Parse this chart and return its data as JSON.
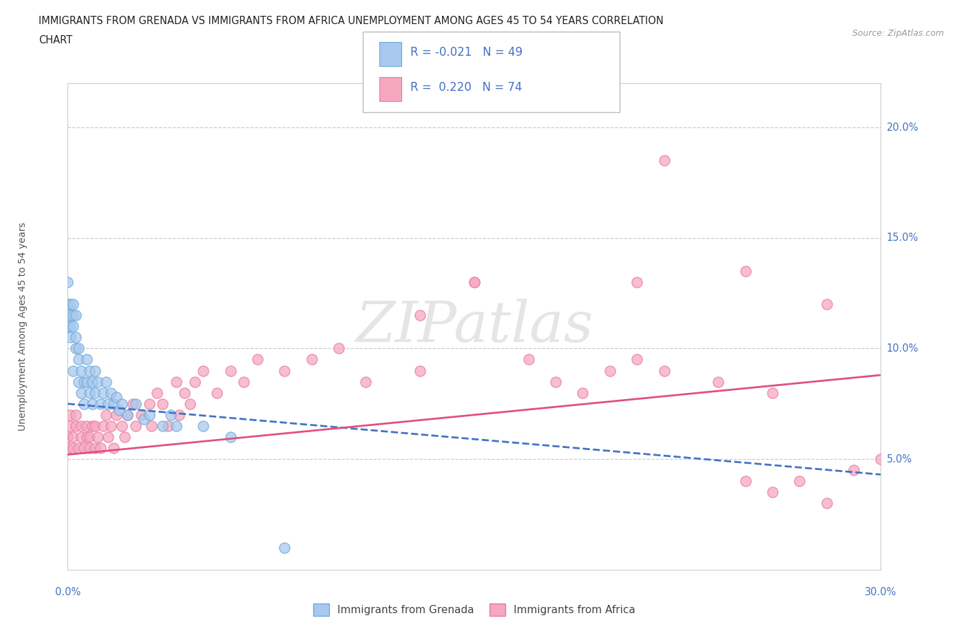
{
  "title_line1": "IMMIGRANTS FROM GRENADA VS IMMIGRANTS FROM AFRICA UNEMPLOYMENT AMONG AGES 45 TO 54 YEARS CORRELATION",
  "title_line2": "CHART",
  "source": "Source: ZipAtlas.com",
  "ylabel": "Unemployment Among Ages 45 to 54 years",
  "legend_grenada": "Immigrants from Grenada",
  "legend_africa": "Immigrants from Africa",
  "grenada_R": -0.021,
  "grenada_N": 49,
  "africa_R": 0.22,
  "africa_N": 74,
  "grenada_color": "#a8c8f0",
  "grenada_edge": "#6aaad4",
  "africa_color": "#f5a8c0",
  "africa_edge": "#e87aa0",
  "grenada_line_color": "#4472c4",
  "africa_line_color": "#e05080",
  "xmin": 0.0,
  "xmax": 0.3,
  "ymin": 0.0,
  "ymax": 0.22,
  "ytick_vals": [
    0.05,
    0.1,
    0.15,
    0.2
  ],
  "ytick_labels": [
    "5.0%",
    "10.0%",
    "15.0%",
    "20.0%"
  ],
  "xtick_label_left": "0.0%",
  "xtick_label_right": "30.0%",
  "grenada_x": [
    0.0,
    0.0,
    0.0,
    0.001,
    0.001,
    0.001,
    0.001,
    0.002,
    0.002,
    0.002,
    0.002,
    0.003,
    0.003,
    0.003,
    0.004,
    0.004,
    0.004,
    0.005,
    0.005,
    0.006,
    0.006,
    0.007,
    0.007,
    0.008,
    0.008,
    0.009,
    0.009,
    0.01,
    0.01,
    0.011,
    0.012,
    0.013,
    0.014,
    0.015,
    0.016,
    0.017,
    0.018,
    0.019,
    0.02,
    0.022,
    0.025,
    0.028,
    0.03,
    0.035,
    0.038,
    0.04,
    0.05,
    0.06,
    0.08
  ],
  "grenada_y": [
    0.13,
    0.12,
    0.11,
    0.12,
    0.115,
    0.11,
    0.105,
    0.12,
    0.115,
    0.11,
    0.09,
    0.115,
    0.105,
    0.1,
    0.1,
    0.095,
    0.085,
    0.09,
    0.08,
    0.085,
    0.075,
    0.095,
    0.085,
    0.09,
    0.08,
    0.085,
    0.075,
    0.09,
    0.08,
    0.085,
    0.075,
    0.08,
    0.085,
    0.075,
    0.08,
    0.075,
    0.078,
    0.072,
    0.075,
    0.07,
    0.075,
    0.068,
    0.07,
    0.065,
    0.07,
    0.065,
    0.065,
    0.06,
    0.01
  ],
  "africa_x": [
    0.0,
    0.0,
    0.001,
    0.001,
    0.002,
    0.002,
    0.003,
    0.003,
    0.004,
    0.005,
    0.005,
    0.006,
    0.007,
    0.007,
    0.008,
    0.008,
    0.009,
    0.01,
    0.01,
    0.011,
    0.012,
    0.013,
    0.014,
    0.015,
    0.016,
    0.017,
    0.018,
    0.02,
    0.021,
    0.022,
    0.024,
    0.025,
    0.027,
    0.03,
    0.031,
    0.033,
    0.035,
    0.037,
    0.04,
    0.041,
    0.043,
    0.045,
    0.047,
    0.05,
    0.055,
    0.06,
    0.065,
    0.07,
    0.08,
    0.09,
    0.1,
    0.11,
    0.13,
    0.15,
    0.17,
    0.18,
    0.2,
    0.21,
    0.22,
    0.25,
    0.26,
    0.27,
    0.28,
    0.29,
    0.3,
    0.25,
    0.28,
    0.22,
    0.19,
    0.24,
    0.15,
    0.13,
    0.21,
    0.26
  ],
  "africa_y": [
    0.055,
    0.06,
    0.065,
    0.07,
    0.055,
    0.06,
    0.065,
    0.07,
    0.055,
    0.06,
    0.065,
    0.055,
    0.06,
    0.065,
    0.055,
    0.06,
    0.065,
    0.055,
    0.065,
    0.06,
    0.055,
    0.065,
    0.07,
    0.06,
    0.065,
    0.055,
    0.07,
    0.065,
    0.06,
    0.07,
    0.075,
    0.065,
    0.07,
    0.075,
    0.065,
    0.08,
    0.075,
    0.065,
    0.085,
    0.07,
    0.08,
    0.075,
    0.085,
    0.09,
    0.08,
    0.09,
    0.085,
    0.095,
    0.09,
    0.095,
    0.1,
    0.085,
    0.115,
    0.13,
    0.095,
    0.085,
    0.09,
    0.095,
    0.09,
    0.04,
    0.035,
    0.04,
    0.03,
    0.045,
    0.05,
    0.135,
    0.12,
    0.185,
    0.08,
    0.085,
    0.13,
    0.09,
    0.13,
    0.08
  ],
  "grenada_trend_x0": 0.0,
  "grenada_trend_x1": 0.3,
  "grenada_trend_y0": 0.075,
  "grenada_trend_y1": 0.043,
  "africa_trend_x0": 0.0,
  "africa_trend_x1": 0.3,
  "africa_trend_y0": 0.052,
  "africa_trend_y1": 0.088,
  "watermark_text": "ZIPatlas",
  "watermark_color": "#cccccc",
  "watermark_alpha": 0.5
}
